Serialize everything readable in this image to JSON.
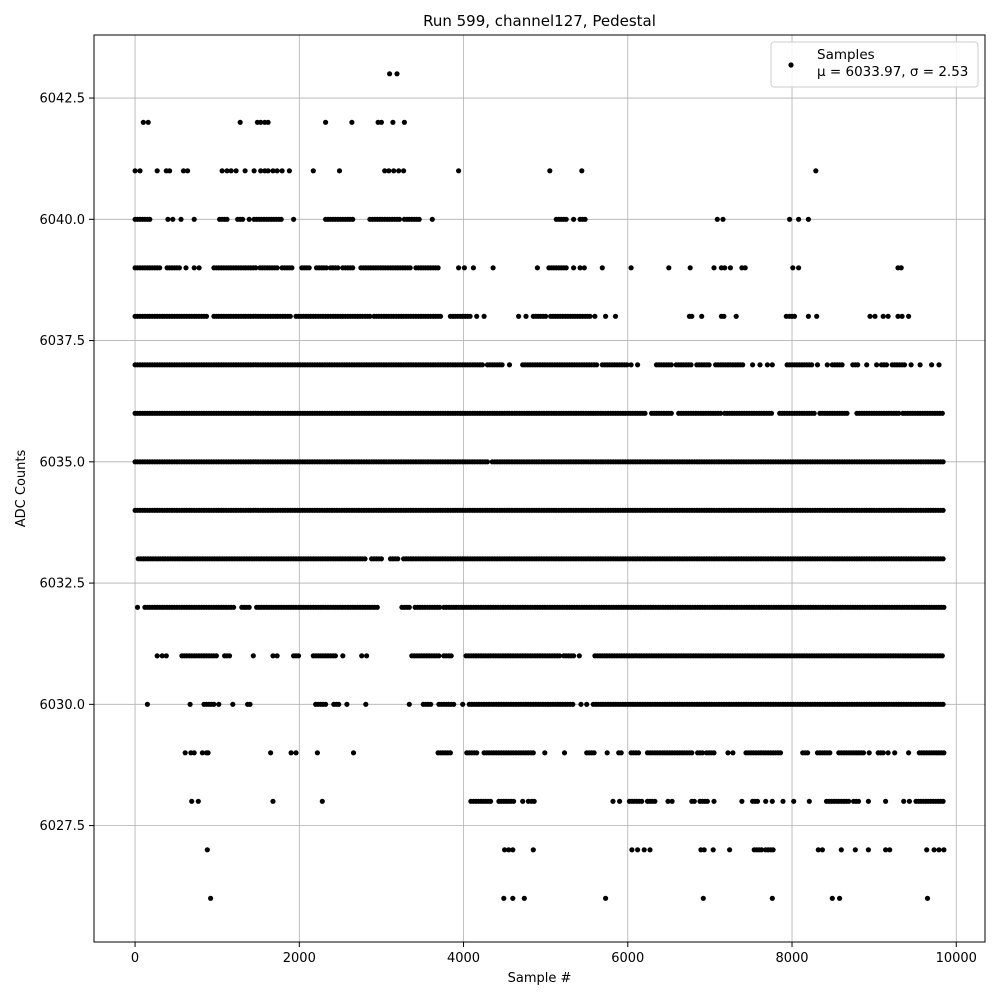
{
  "chart_data": {
    "type": "scatter",
    "title": "Run 599, channel127, Pedestal",
    "xlabel": "Sample #",
    "ylabel": "ADC Counts",
    "xlim": [
      -500,
      10350
    ],
    "ylim": [
      6025.1,
      6043.8
    ],
    "xticks": [
      0,
      2000,
      4000,
      6000,
      8000,
      10000
    ],
    "xtick_labels": [
      "0",
      "2000",
      "4000",
      "6000",
      "8000",
      "10000"
    ],
    "yticks": [
      6027.5,
      6030.0,
      6032.5,
      6035.0,
      6037.5,
      6040.0,
      6042.5
    ],
    "ytick_labels": [
      "6027.5",
      "6030.0",
      "6032.5",
      "6035.0",
      "6037.5",
      "6040.0",
      "6042.5"
    ],
    "grid": true,
    "legend_position": "top-right",
    "marker_color": "#000000",
    "series": [
      {
        "name": "Samples",
        "stats_label": "μ = 6033.97, σ = 2.53",
        "levels": [
          {
            "y": 6043,
            "x": [
              3100,
              3190
            ]
          },
          {
            "y": 6042,
            "x": [
              100,
              160,
              1280,
              1490,
              1530,
              1580,
              1620,
              2320,
              2640,
              2960,
              3000,
              3140,
              3280
            ]
          },
          {
            "y": 6041,
            "x": [
              0,
              60,
              270,
              380,
              420,
              590,
              640,
              1060,
              1120,
              1170,
              1230,
              1340,
              1450,
              1530,
              1580,
              1620,
              1680,
              1730,
              1790,
              1880,
              2170,
              2490,
              3040,
              3090,
              3150,
              3210,
              3270,
              3940,
              5050,
              5440,
              8290
            ]
          },
          {
            "y": 6040,
            "x": [
              [
                0,
                180
              ],
              400,
              460,
              560,
              720,
              [
                1030,
                1120
              ],
              [
                1250,
                1320
              ],
              1390,
              [
                1450,
                1790
              ],
              1930,
              [
                2320,
                2660
              ],
              [
                2860,
                3220
              ],
              [
                3280,
                3460
              ],
              3620,
              [
                5130,
                5260
              ],
              5340,
              [
                5420,
                5500
              ],
              7090,
              7160,
              7970,
              8080,
              8200
            ]
          },
          {
            "y": 6039,
            "x": [
              [
                0,
                300
              ],
              [
                390,
                560
              ],
              620,
              720,
              780,
              [
                960,
                1490
              ],
              [
                1520,
                1740
              ],
              [
                1790,
                1930
              ],
              [
                2030,
                2130
              ],
              [
                2210,
                2330
              ],
              [
                2380,
                2490
              ],
              [
                2530,
                2660
              ],
              [
                2750,
                3370
              ],
              [
                3420,
                3700
              ],
              3940,
              4010,
              4120,
              4360,
              4900,
              [
                5040,
                5250
              ],
              5340,
              5420,
              5470,
              5690,
              6040,
              6500,
              6760,
              7050,
              7140,
              7180,
              7250,
              7390,
              7430,
              8010,
              8080,
              9290,
              9330
            ]
          },
          {
            "y": 6038,
            "x": [
              [
                0,
                880
              ],
              [
                960,
                1910
              ],
              [
                1960,
                2860
              ],
              [
                2910,
                3720
              ],
              [
                3840,
                4090
              ],
              4160,
              4250,
              4670,
              4760,
              [
                4850,
                5000
              ],
              [
                5060,
                5550
              ],
              5600,
              5730,
              5850,
              6750,
              6780,
              6900,
              [
                7140,
                7190
              ],
              7320,
              7930,
              [
                7970,
                8050
              ],
              8200,
              8300,
              8950,
              9010,
              9110,
              9170,
              9290,
              9340,
              9420
            ]
          },
          {
            "y": 6037,
            "x": [
              [
                0,
                4240
              ],
              [
                4290,
                4480
              ],
              4560,
              [
                4720,
                5640
              ],
              [
                5690,
                6000
              ],
              6040,
              6120,
              [
                6350,
                6550
              ],
              [
                6590,
                6780
              ],
              [
                6840,
                7000
              ],
              [
                7070,
                7420
              ],
              7520,
              7610,
              7700,
              7760,
              [
                7940,
                8240
              ],
              8310,
              8430,
              [
                8490,
                8610
              ],
              [
                8740,
                8820
              ],
              8910,
              9030,
              [
                9090,
                9160
              ],
              [
                9220,
                9370
              ],
              9450,
              9560,
              9700,
              9790
            ]
          },
          {
            "y": 6036,
            "x": [
              [
                0,
                6220
              ],
              [
                6290,
                6550
              ],
              [
                6620,
                7130
              ],
              [
                7180,
                7770
              ],
              [
                7850,
                8280
              ],
              [
                8340,
                8680
              ],
              [
                8790,
                9300
              ],
              [
                9350,
                9850
              ]
            ]
          },
          {
            "y": 6035,
            "x": [
              [
                0,
                4300
              ],
              [
                4350,
                9850
              ]
            ]
          },
          {
            "y": 6034,
            "x": [
              [
                0,
                9850
              ]
            ]
          },
          {
            "y": 6033,
            "x": [
              [
                40,
                2820
              ],
              [
                2880,
                3000
              ],
              [
                3110,
                3200
              ],
              [
                3270,
                9850
              ]
            ]
          },
          {
            "y": 6032,
            "x": [
              30,
              [
                120,
                240
              ],
              [
                270,
                1220
              ],
              [
                1300,
                1390
              ],
              [
                1480,
                2970
              ],
              [
                3250,
                3350
              ],
              [
                3410,
                3720
              ],
              [
                3760,
                9850
              ]
            ]
          },
          {
            "y": 6031,
            "x": [
              270,
              330,
              380,
              [
                570,
                990
              ],
              [
                1090,
                1160
              ],
              1440,
              1680,
              1730,
              [
                1930,
                1990
              ],
              [
                2170,
                2450
              ],
              2530,
              2760,
              2820,
              [
                3370,
                3700
              ],
              [
                3760,
                3870
              ],
              [
                4030,
                5170
              ],
              [
                5220,
                5340
              ],
              5410,
              [
                5600,
                9850
              ]
            ]
          },
          {
            "y": 6030,
            "x": [
              150,
              670,
              [
                840,
                970
              ],
              1020,
              1190,
              [
                1370,
                1400
              ],
              [
                2200,
                2330
              ],
              [
                2420,
                2480
              ],
              2580,
              2810,
              3340,
              [
                3510,
                3600
              ],
              [
                3700,
                3880
              ],
              3990,
              [
                4070,
                5330
              ],
              5430,
              5500,
              [
                5580,
                9850
              ]
            ]
          },
          {
            "y": 6029,
            "x": [
              610,
              680,
              720,
              820,
              870,
              890,
              1650,
              1900,
              1960,
              2220,
              2660,
              [
                3690,
                3860
              ],
              [
                4040,
                4170
              ],
              [
                4250,
                4850
              ],
              4990,
              5230,
              [
                5500,
                5600
              ],
              5750,
              [
                5890,
                5940
              ],
              [
                6040,
                6150
              ],
              [
                6240,
                6800
              ],
              [
                6850,
                6920
              ],
              [
                6960,
                7050
              ],
              7220,
              7280,
              [
                7440,
                7880
              ],
              [
                8130,
                8190
              ],
              [
                8310,
                8460
              ],
              [
                8570,
                8880
              ],
              8940,
              [
                9050,
                9110
              ],
              9170,
              9250,
              9420,
              [
                9550,
                9850
              ]
            ]
          },
          {
            "y": 6028,
            "x": [
              690,
              770,
              1680,
              2280,
              [
                4090,
                4350
              ],
              [
                4430,
                4610
              ],
              4720,
              4790,
              4830,
              4860,
              5820,
              5900,
              [
                6020,
                6180
              ],
              [
                6240,
                6350
              ],
              6490,
              6540,
              [
                6780,
                6830
              ],
              [
                6880,
                6990
              ],
              7050,
              7390,
              [
                7520,
                7600
              ],
              7680,
              7760,
              7890,
              8020,
              8210,
              [
                8420,
                8700
              ],
              [
                8750,
                8820
              ],
              8930,
              9140,
              9360,
              9430,
              [
                9510,
                9850
              ]
            ]
          },
          {
            "y": 6027,
            "x": [
              880,
              4500,
              4550,
              4600,
              4850,
              6050,
              6120,
              6200,
              6270,
              6890,
              6930,
              7040,
              7240,
              [
                7540,
                7640
              ],
              [
                7680,
                7780
              ],
              8320,
              8370,
              8600,
              8770,
              8930,
              9140,
              9190,
              9640,
              9730,
              9790,
              9850
            ]
          },
          {
            "y": 6026,
            "x": [
              920,
              4490,
              4600,
              4740,
              5730,
              6920,
              7760,
              8490,
              8580,
              9650
            ]
          }
        ]
      }
    ]
  }
}
